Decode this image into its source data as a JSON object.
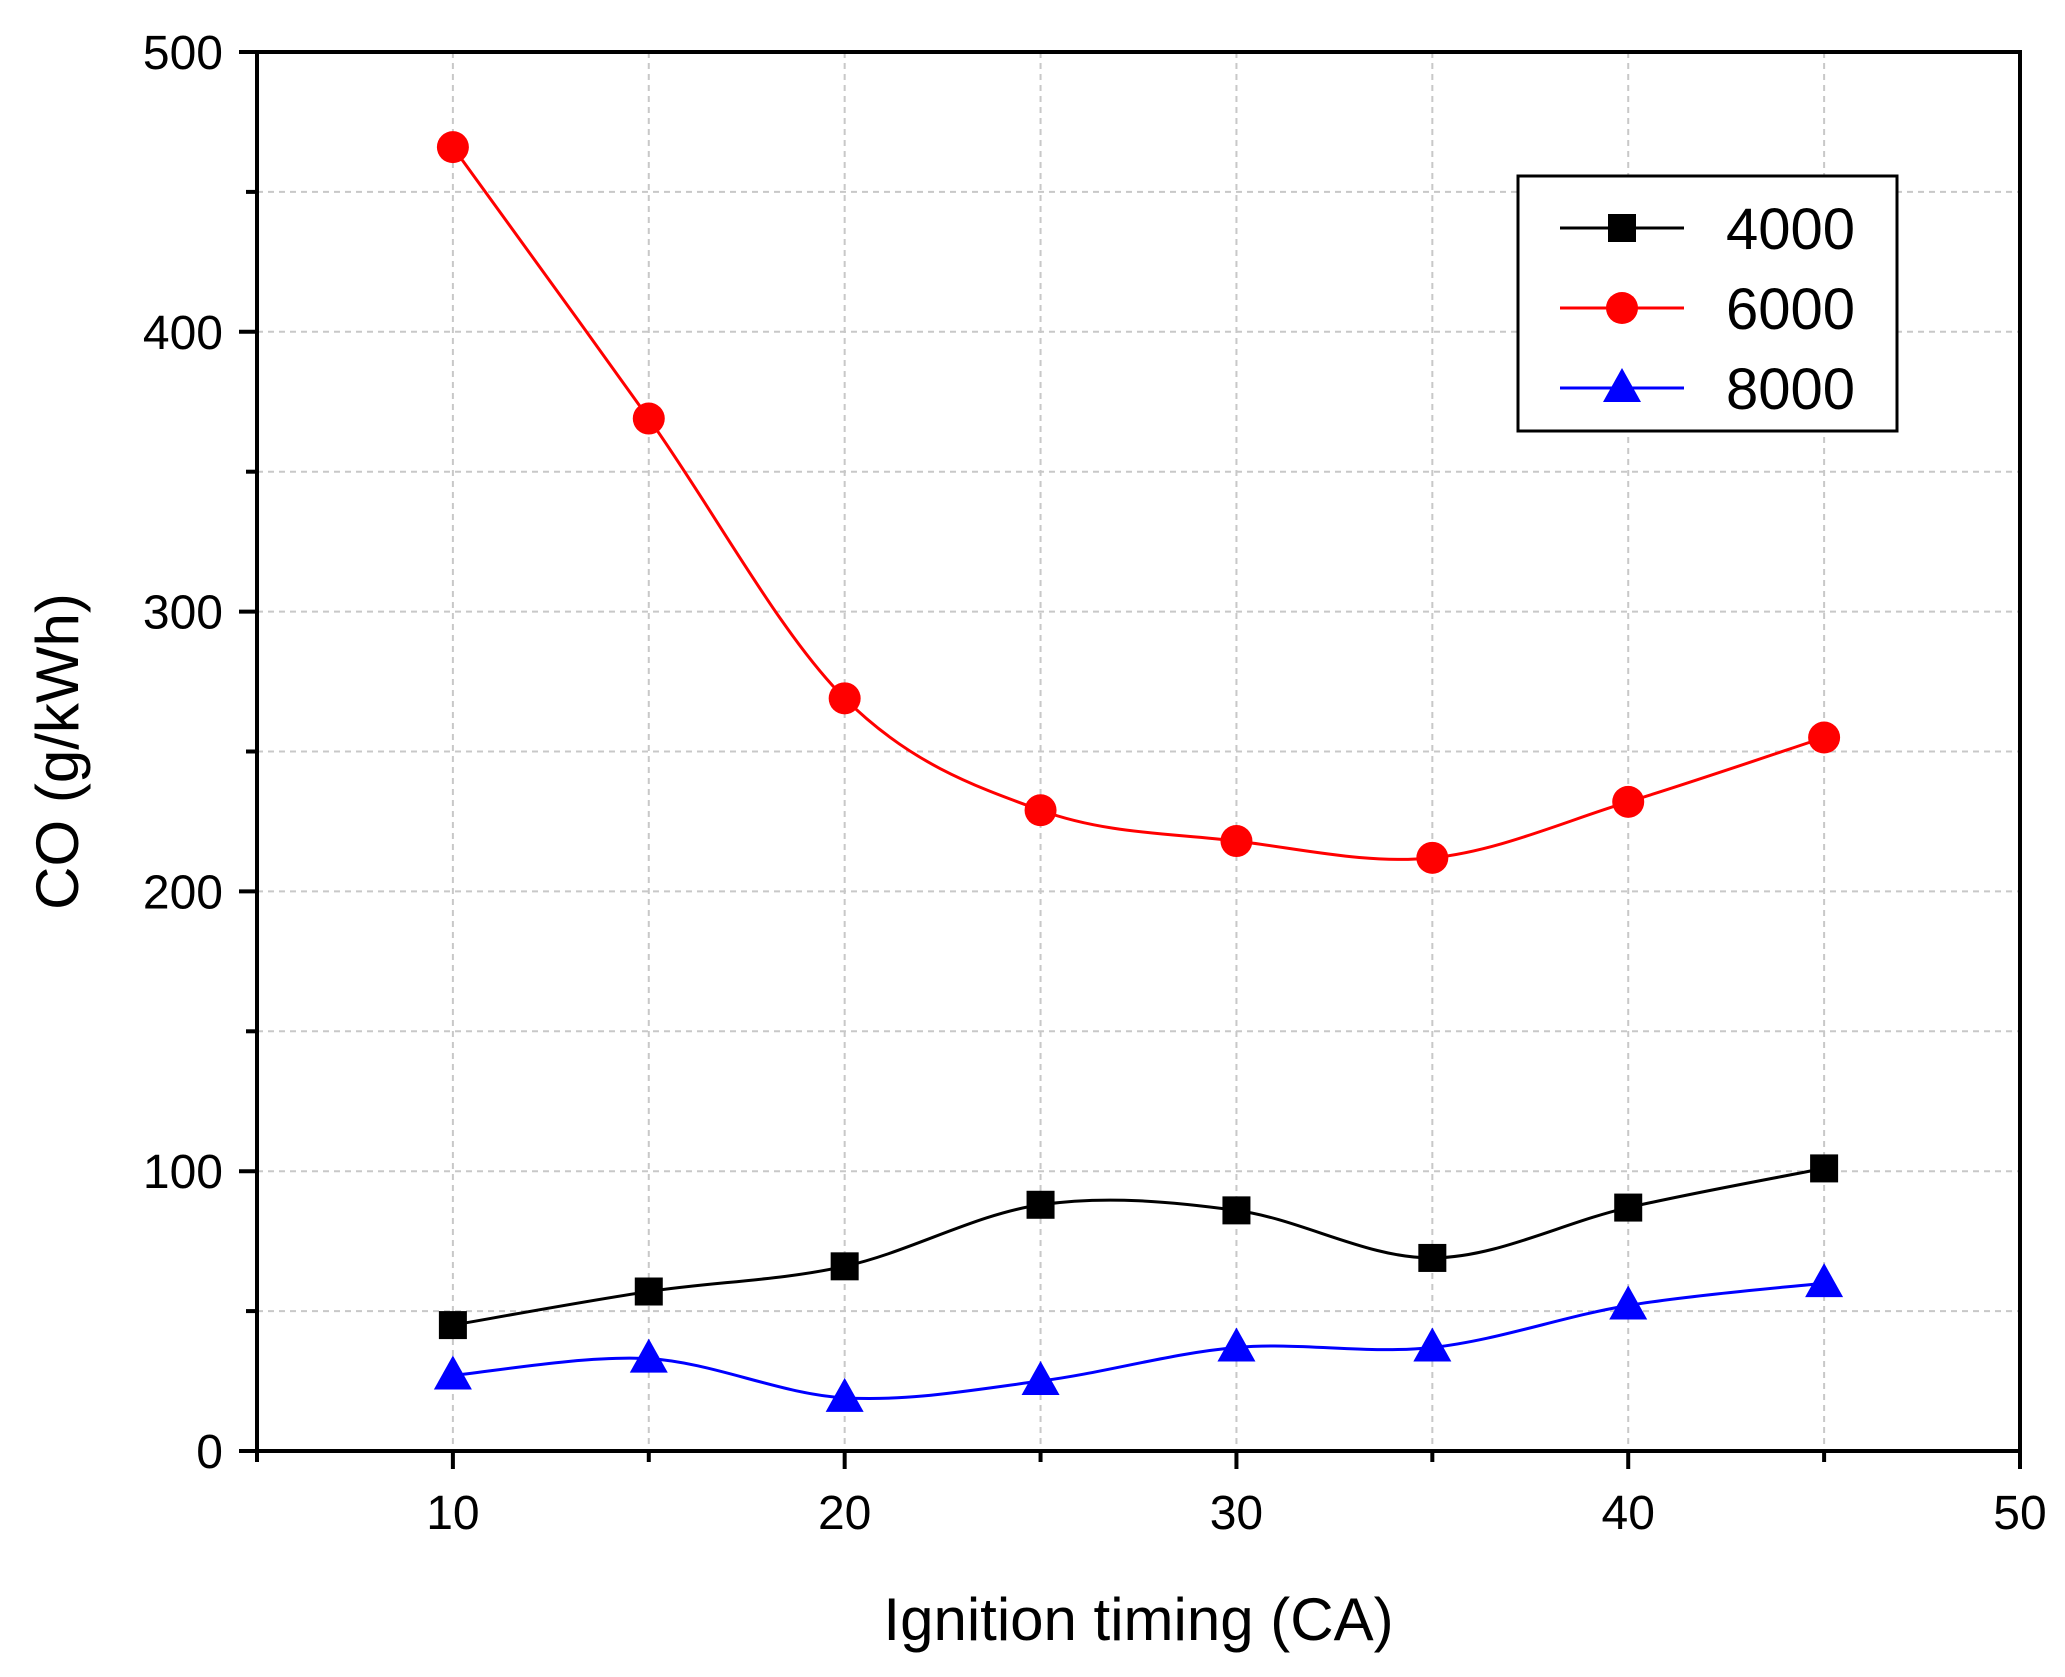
{
  "chart_data": {
    "type": "line",
    "title": "",
    "xlabel": "Ignition timing (CA)",
    "ylabel": "CO (g/kWh)",
    "xlim": [
      5,
      50
    ],
    "ylim": [
      0,
      500
    ],
    "xticks": [
      10,
      20,
      30,
      40,
      50
    ],
    "yticks": [
      0,
      100,
      200,
      300,
      400,
      500
    ],
    "x_minor_step": 5,
    "y_minor_step": 50,
    "grid": true,
    "legend_position": "top-right",
    "x": [
      10,
      15,
      20,
      25,
      30,
      35,
      40,
      45
    ],
    "series": [
      {
        "name": "4000",
        "color": "#000000",
        "marker": "square",
        "values": [
          45,
          57,
          66,
          88,
          86,
          69,
          87,
          101
        ]
      },
      {
        "name": "6000",
        "color": "#ff0000",
        "marker": "circle",
        "values": [
          466,
          369,
          269,
          229,
          218,
          212,
          232,
          255
        ]
      },
      {
        "name": "8000",
        "color": "#0000ff",
        "marker": "triangle",
        "values": [
          27,
          33,
          19,
          25,
          37,
          37,
          52,
          60
        ]
      }
    ]
  }
}
